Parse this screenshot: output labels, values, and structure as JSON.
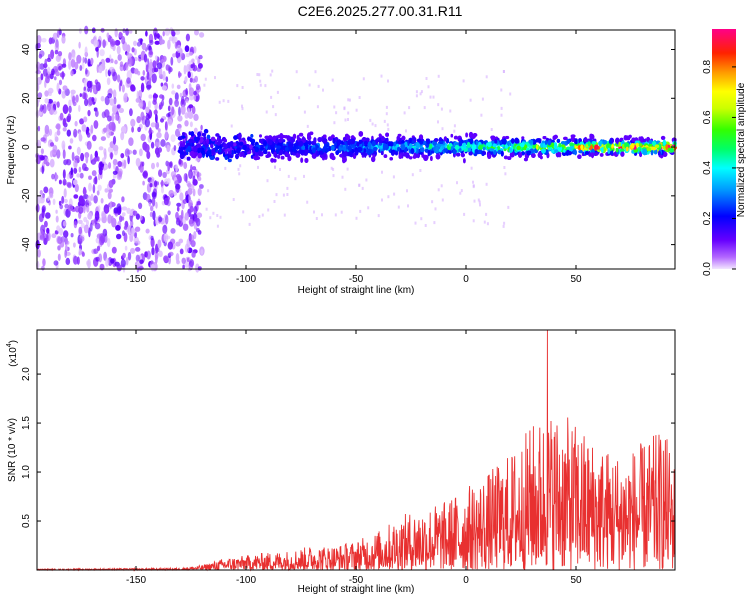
{
  "title": "C2E6.2025.277.00.31.R11",
  "colors": {
    "signal": "#e83030",
    "background": "#ffffff",
    "axis": "#000000"
  },
  "chart_data": [
    {
      "type": "heatmap",
      "name": "spectrogram",
      "xlabel": "Height of straight line (km)",
      "ylabel": "Frequency (Hz)",
      "xlim": [
        -195,
        95
      ],
      "ylim": [
        -50,
        48
      ],
      "xticks": [
        -150,
        -100,
        -50,
        0,
        50
      ],
      "yticks": [
        -40,
        -20,
        0,
        20,
        40
      ],
      "colorbar": {
        "label": "Normalized spectral amplitude",
        "range": [
          0,
          0.95
        ],
        "ticks": [
          0.0,
          0.2,
          0.4,
          0.6,
          0.8
        ],
        "tick_labels": [
          "0.0",
          "0.2",
          "0.4",
          "0.6",
          "0.8"
        ]
      },
      "regions": [
        {
          "description": "noise",
          "x_range": [
            -195,
            -120
          ],
          "freq_range": [
            -50,
            48
          ],
          "amplitude": 0.05
        },
        {
          "description": "signal band",
          "x_range": [
            -130,
            95
          ],
          "center_freq": 0,
          "bandwidth_hz": 12,
          "amplitude_start": 0.1,
          "amplitude_end": 0.85
        }
      ]
    },
    {
      "type": "line",
      "name": "snr",
      "xlabel": "Height of straight line (km)",
      "ylabel": "SNR (10 * v/v)",
      "exponent_label": "(x10",
      "exponent_power": "4",
      "exponent_close": ")",
      "xlim": [
        -195,
        95
      ],
      "ylim": [
        0,
        2.45
      ],
      "xticks": [
        -150,
        -100,
        -50,
        0,
        50
      ],
      "yticks": [
        0.5,
        1.0,
        1.5,
        2.0
      ],
      "ytick_labels": [
        "0.5",
        "1.0",
        "1.5",
        "2.0"
      ],
      "envelope": {
        "x": [
          -195,
          -130,
          -120,
          -110,
          -100,
          -90,
          -80,
          -70,
          -60,
          -50,
          -40,
          -30,
          -20,
          -10,
          0,
          10,
          20,
          30,
          40,
          50,
          60,
          70,
          80,
          90,
          95
        ],
        "max": [
          0.01,
          0.02,
          0.05,
          0.12,
          0.15,
          0.18,
          0.2,
          0.25,
          0.25,
          0.3,
          0.4,
          0.55,
          0.65,
          0.7,
          0.85,
          1.0,
          1.2,
          1.5,
          1.65,
          1.5,
          1.3,
          1.2,
          1.3,
          1.45,
          1.1
        ]
      },
      "peak": {
        "x": 37,
        "y": 2.45
      }
    }
  ]
}
